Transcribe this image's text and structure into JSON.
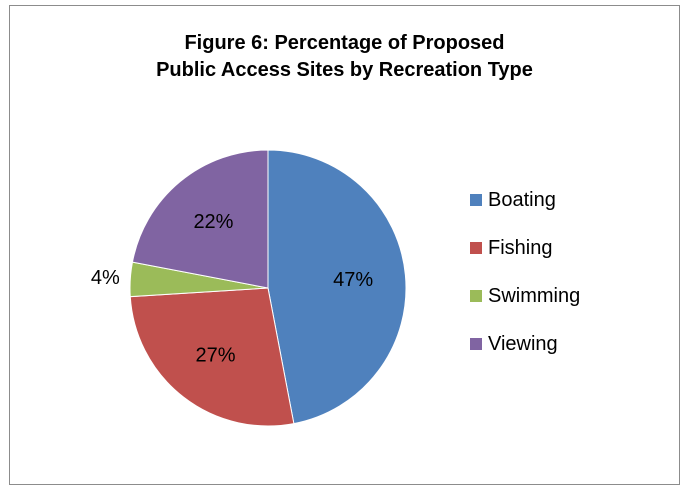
{
  "chart_data": {
    "type": "pie",
    "title": "Figure 6: Percentage of Proposed Public Access Sites by Recreation Type",
    "title_lines": [
      "Figure 6: Percentage of Proposed",
      "Public Access Sites by Recreation Type"
    ],
    "categories": [
      "Boating",
      "Fishing",
      "Swimming",
      "Viewing"
    ],
    "values": [
      47,
      27,
      4,
      22
    ],
    "data_labels": [
      "47%",
      "27%",
      "4%",
      "22%"
    ],
    "colors": [
      "#4f81bd",
      "#c0504d",
      "#9bbb59",
      "#8064a2"
    ],
    "legend_placement": "right"
  }
}
